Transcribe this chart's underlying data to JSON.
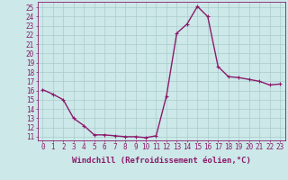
{
  "x": [
    0,
    1,
    2,
    3,
    4,
    5,
    6,
    7,
    8,
    9,
    10,
    11,
    12,
    13,
    14,
    15,
    16,
    17,
    18,
    19,
    20,
    21,
    22,
    23
  ],
  "y": [
    16.1,
    15.6,
    15.0,
    13.0,
    12.2,
    11.2,
    11.2,
    11.1,
    11.0,
    11.0,
    10.9,
    11.1,
    15.4,
    22.2,
    23.2,
    25.1,
    24.0,
    18.6,
    17.5,
    17.4,
    17.2,
    17.0,
    16.6,
    16.7
  ],
  "line_color": "#8b1a6b",
  "marker": "+",
  "marker_size": 3,
  "marker_lw": 0.8,
  "bg_color": "#cce8e8",
  "grid_color": "#aacccc",
  "xlabel": "Windchill (Refroidissement éolien,°C)",
  "xlabel_color": "#8b1a6b",
  "ylabel_ticks": [
    11,
    12,
    13,
    14,
    15,
    16,
    17,
    18,
    19,
    20,
    21,
    22,
    23,
    24,
    25
  ],
  "ylim": [
    10.6,
    25.6
  ],
  "xlim": [
    -0.5,
    23.5
  ],
  "tick_color": "#8b1a6b",
  "spine_color": "#8b1a6b",
  "linewidth": 1.0,
  "font_size": 5.5,
  "xlabel_fontsize": 6.5
}
